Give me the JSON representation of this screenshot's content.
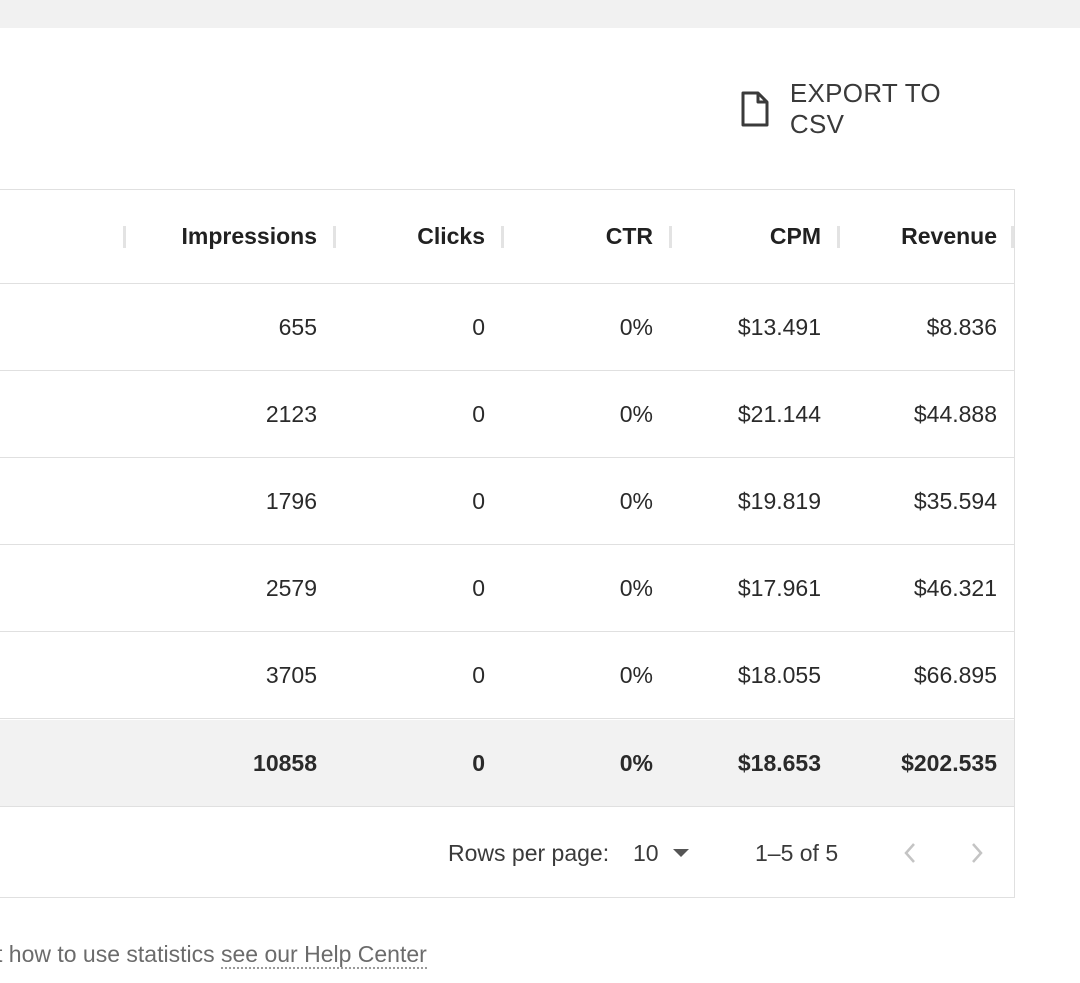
{
  "toolbar": {
    "export_label": "EXPORT TO CSV",
    "export_icon": "file-icon"
  },
  "table": {
    "columns": [
      "Impressions",
      "Clicks",
      "CTR",
      "CPM",
      "Revenue"
    ],
    "rows": [
      {
        "impressions": "655",
        "clicks": "0",
        "ctr": "0%",
        "cpm": "$13.491",
        "revenue": "$8.836"
      },
      {
        "impressions": "2123",
        "clicks": "0",
        "ctr": "0%",
        "cpm": "$21.144",
        "revenue": "$44.888"
      },
      {
        "impressions": "1796",
        "clicks": "0",
        "ctr": "0%",
        "cpm": "$19.819",
        "revenue": "$35.594"
      },
      {
        "impressions": "2579",
        "clicks": "0",
        "ctr": "0%",
        "cpm": "$17.961",
        "revenue": "$46.321"
      },
      {
        "impressions": "3705",
        "clicks": "0",
        "ctr": "0%",
        "cpm": "$18.055",
        "revenue": "$66.895"
      }
    ],
    "total": {
      "impressions": "10858",
      "clicks": "0",
      "ctr": "0%",
      "cpm": "$18.653",
      "revenue": "$202.535"
    }
  },
  "pagination": {
    "rows_per_page_label": "Rows per page:",
    "rows_per_page_value": "10",
    "range_text": "1–5 of 5",
    "prev_icon": "chevron-left-icon",
    "next_icon": "chevron-right-icon"
  },
  "help": {
    "prefix": "t how to use statistics ",
    "link_text": "see our Help Center"
  }
}
